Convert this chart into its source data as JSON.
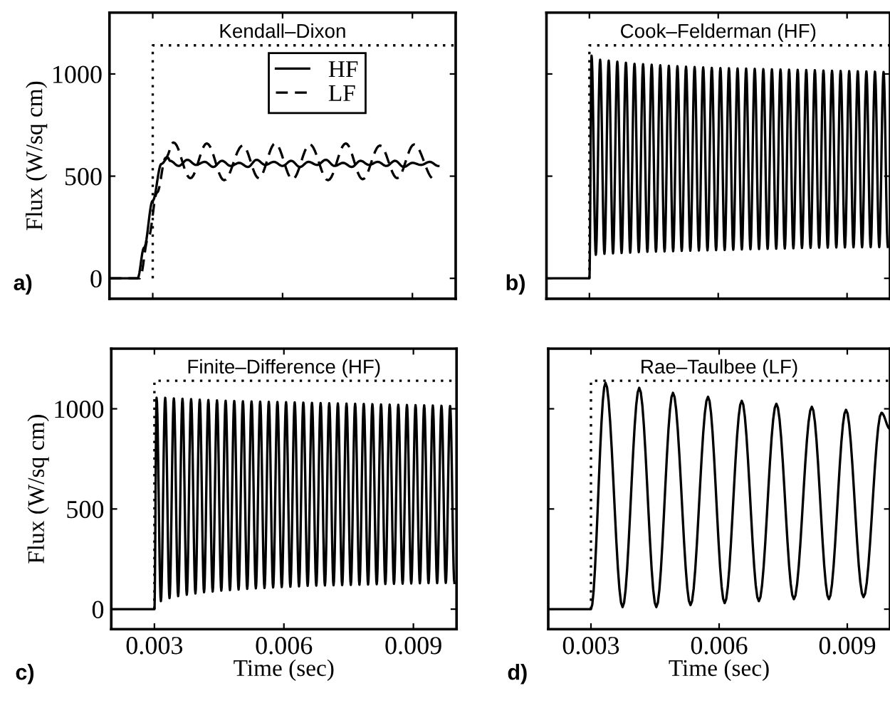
{
  "chart_data": [
    {
      "type": "line",
      "title": "Kendall–Dixon",
      "ylabel": "Flux (W/sq cm)",
      "annotations": [
        "a)"
      ],
      "xlim": [
        0.002,
        0.01
      ],
      "ylim": [
        -100,
        1300
      ],
      "xticks": [
        0.003,
        0.006,
        0.009
      ],
      "yticks": [
        0,
        500,
        1000
      ],
      "tick_labels": "y",
      "legend": "top",
      "grid": false,
      "series": [
        {
          "name": "HF",
          "color": "#000000",
          "line_style": "solid",
          "x": [
            0.002,
            0.00265,
            0.0028,
            0.003,
            0.0032,
            0.00335,
            0.0034,
            0.0036,
            0.0038,
            0.004,
            0.0042,
            0.0044,
            0.0046,
            0.0048,
            0.005,
            0.0052,
            0.0054,
            0.0056,
            0.0058,
            0.006,
            0.0062,
            0.0064,
            0.0066,
            0.0068,
            0.007,
            0.0072,
            0.0074,
            0.0076,
            0.0078,
            0.008,
            0.0082,
            0.0084,
            0.0086,
            0.0088,
            0.009,
            0.0092,
            0.0094,
            0.0096
          ],
          "values": [
            0,
            0,
            150,
            380,
            560,
            590,
            575,
            550,
            580,
            555,
            570,
            545,
            575,
            550,
            565,
            545,
            580,
            555,
            570,
            550,
            575,
            545,
            570,
            555,
            580,
            550,
            565,
            545,
            575,
            555,
            570,
            550,
            575,
            545,
            565,
            555,
            570,
            550
          ]
        },
        {
          "name": "LF",
          "color": "#000000",
          "line_style": "dashed",
          "x": [
            0.002,
            0.0027,
            0.0029,
            0.0031,
            0.0033,
            0.00348,
            0.00387,
            0.00425,
            0.00465,
            0.00508,
            0.00545,
            0.00583,
            0.00623,
            0.00663,
            0.00705,
            0.00746,
            0.00785,
            0.00825,
            0.00865,
            0.00904,
            0.0095
          ],
          "values": [
            0,
            0,
            200,
            420,
            590,
            665,
            490,
            660,
            480,
            650,
            490,
            660,
            485,
            655,
            480,
            660,
            485,
            650,
            490,
            655,
            485
          ]
        },
        {
          "color": "#000000",
          "line_style": "dotted",
          "x": [
            0.003,
            0.003,
            0.01
          ],
          "values": [
            0,
            1140,
            1140
          ]
        }
      ]
    },
    {
      "type": "line",
      "title": "Cook–Felderman (HF)",
      "annotations": [
        "b)"
      ],
      "xlim": [
        0.002,
        0.01
      ],
      "ylim": [
        -100,
        1300
      ],
      "xticks": [
        0.003,
        0.006,
        0.009
      ],
      "yticks": [
        0,
        500,
        1000
      ],
      "tick_labels": false,
      "grid": false,
      "series": [
        {
          "color": "#000000",
          "line_style": "solid",
          "x": [
            0.002,
            0.003,
            0.00305,
            0.00315,
            0.00325,
            0.00335,
            0.00345,
            0.00355,
            0.00365,
            0.00375,
            0.00385,
            0.00395,
            0.00405,
            0.00415,
            0.00425,
            0.00435,
            0.00445,
            0.00455,
            0.00465,
            0.00475,
            0.00485,
            0.00495,
            0.00505,
            0.00515,
            0.00525,
            0.00535,
            0.00545,
            0.00555,
            0.00565,
            0.00575,
            0.00585,
            0.00595,
            0.00605,
            0.00615,
            0.00625,
            0.00635,
            0.00645,
            0.00655,
            0.00665,
            0.00675,
            0.00685,
            0.00695,
            0.00705,
            0.00715,
            0.00725,
            0.00735,
            0.00745,
            0.00755,
            0.00765,
            0.00775,
            0.00785,
            0.00795,
            0.00805,
            0.00815,
            0.00825,
            0.00835,
            0.00845,
            0.00855,
            0.00865,
            0.00875,
            0.00885,
            0.00895,
            0.00905,
            0.00915,
            0.00925,
            0.00935,
            0.00945,
            0.00955,
            0.00965,
            0.00975,
            0.00985,
            0.00995
          ],
          "values": [
            0,
            0,
            1090,
            115,
            1070,
            120,
            1065,
            122,
            1060,
            124,
            1055,
            126,
            1050,
            128,
            1048,
            130,
            1045,
            131,
            1043,
            132,
            1040,
            133,
            1038,
            134,
            1036,
            135,
            1034,
            136,
            1032,
            137,
            1030,
            138,
            1029,
            139,
            1028,
            140,
            1027,
            141,
            1026,
            142,
            1025,
            143,
            1024,
            144,
            1023,
            145,
            1022,
            146,
            1021,
            147,
            1020,
            148,
            1019,
            149,
            1018,
            150,
            1017,
            150,
            1016,
            151,
            1015,
            151,
            1014,
            152,
            1013,
            152,
            1012,
            153,
            1011,
            153,
            1010,
            154
          ]
        },
        {
          "color": "#000000",
          "line_style": "dotted",
          "x": [
            0.003,
            0.003,
            0.01
          ],
          "values": [
            0,
            1140,
            1140
          ]
        }
      ]
    },
    {
      "type": "line",
      "title": "Finite–Difference (HF)",
      "xlabel": "Time (sec)",
      "ylabel": "Flux (W/sq cm)",
      "annotations": [
        "c)"
      ],
      "xlim": [
        0.002,
        0.01
      ],
      "ylim": [
        -100,
        1300
      ],
      "xticks": [
        0.003,
        0.006,
        0.009
      ],
      "yticks": [
        0,
        500,
        1000
      ],
      "grid": false,
      "series": [
        {
          "color": "#000000",
          "line_style": "solid",
          "x": [
            0.002,
            0.003,
            0.00305,
            0.00315,
            0.00325,
            0.00335,
            0.00345,
            0.00355,
            0.00365,
            0.00375,
            0.00385,
            0.00395,
            0.00405,
            0.00415,
            0.00425,
            0.00435,
            0.00445,
            0.00455,
            0.00465,
            0.00475,
            0.00485,
            0.00495,
            0.00505,
            0.00515,
            0.00525,
            0.00535,
            0.00545,
            0.00555,
            0.00565,
            0.00575,
            0.00585,
            0.00595,
            0.00605,
            0.00615,
            0.00625,
            0.00635,
            0.00645,
            0.00655,
            0.00665,
            0.00675,
            0.00685,
            0.00695,
            0.00705,
            0.00715,
            0.00725,
            0.00735,
            0.00745,
            0.00755,
            0.00765,
            0.00775,
            0.00785,
            0.00795,
            0.00805,
            0.00815,
            0.00825,
            0.00835,
            0.00845,
            0.00855,
            0.00865,
            0.00875,
            0.00885,
            0.00895,
            0.00905,
            0.00915,
            0.00925,
            0.00935,
            0.00945,
            0.00955,
            0.00965,
            0.00975,
            0.00985,
            0.00995
          ],
          "values": [
            0,
            0,
            1055,
            40,
            1055,
            55,
            1052,
            65,
            1050,
            72,
            1048,
            78,
            1046,
            84,
            1044,
            88,
            1042,
            92,
            1040,
            95,
            1039,
            98,
            1038,
            101,
            1037,
            104,
            1036,
            106,
            1035,
            108,
            1034,
            110,
            1033,
            112,
            1032,
            114,
            1031,
            116,
            1030,
            117,
            1029,
            118,
            1028,
            119,
            1027,
            120,
            1026,
            121,
            1025,
            122,
            1024,
            123,
            1023,
            124,
            1022,
            125,
            1021,
            126,
            1020,
            127,
            1019,
            128,
            1018,
            129,
            1017,
            130,
            1016,
            130,
            1015,
            131,
            1014,
            131
          ]
        },
        {
          "color": "#000000",
          "line_style": "dotted",
          "x": [
            0.003,
            0.003,
            0.01
          ],
          "values": [
            0,
            1140,
            1140
          ]
        }
      ]
    },
    {
      "type": "line",
      "title": "Rae–Taulbee (LF)",
      "xlabel": "Time (sec)",
      "annotations": [
        "d)"
      ],
      "xlim": [
        0.002,
        0.01
      ],
      "ylim": [
        -100,
        1300
      ],
      "xticks": [
        0.003,
        0.006,
        0.009
      ],
      "yticks": [
        0,
        500,
        1000
      ],
      "tick_labels": "x",
      "grid": false,
      "series": [
        {
          "color": "#000000",
          "line_style": "solid",
          "x": [
            0.002,
            0.003,
            0.00334,
            0.00374,
            0.00413,
            0.00453,
            0.00492,
            0.00533,
            0.00574,
            0.00613,
            0.00653,
            0.00693,
            0.00734,
            0.00775,
            0.00817,
            0.00857,
            0.00897,
            0.00938,
            0.0098,
            0.01
          ],
          "values": [
            0,
            0,
            1130,
            10,
            1105,
            10,
            1080,
            20,
            1060,
            30,
            1040,
            40,
            1025,
            50,
            1010,
            50,
            995,
            60,
            980,
            900
          ]
        },
        {
          "color": "#000000",
          "line_style": "dotted",
          "x": [
            0.003,
            0.003,
            0.01
          ],
          "values": [
            0,
            1140,
            1140
          ]
        }
      ]
    }
  ]
}
